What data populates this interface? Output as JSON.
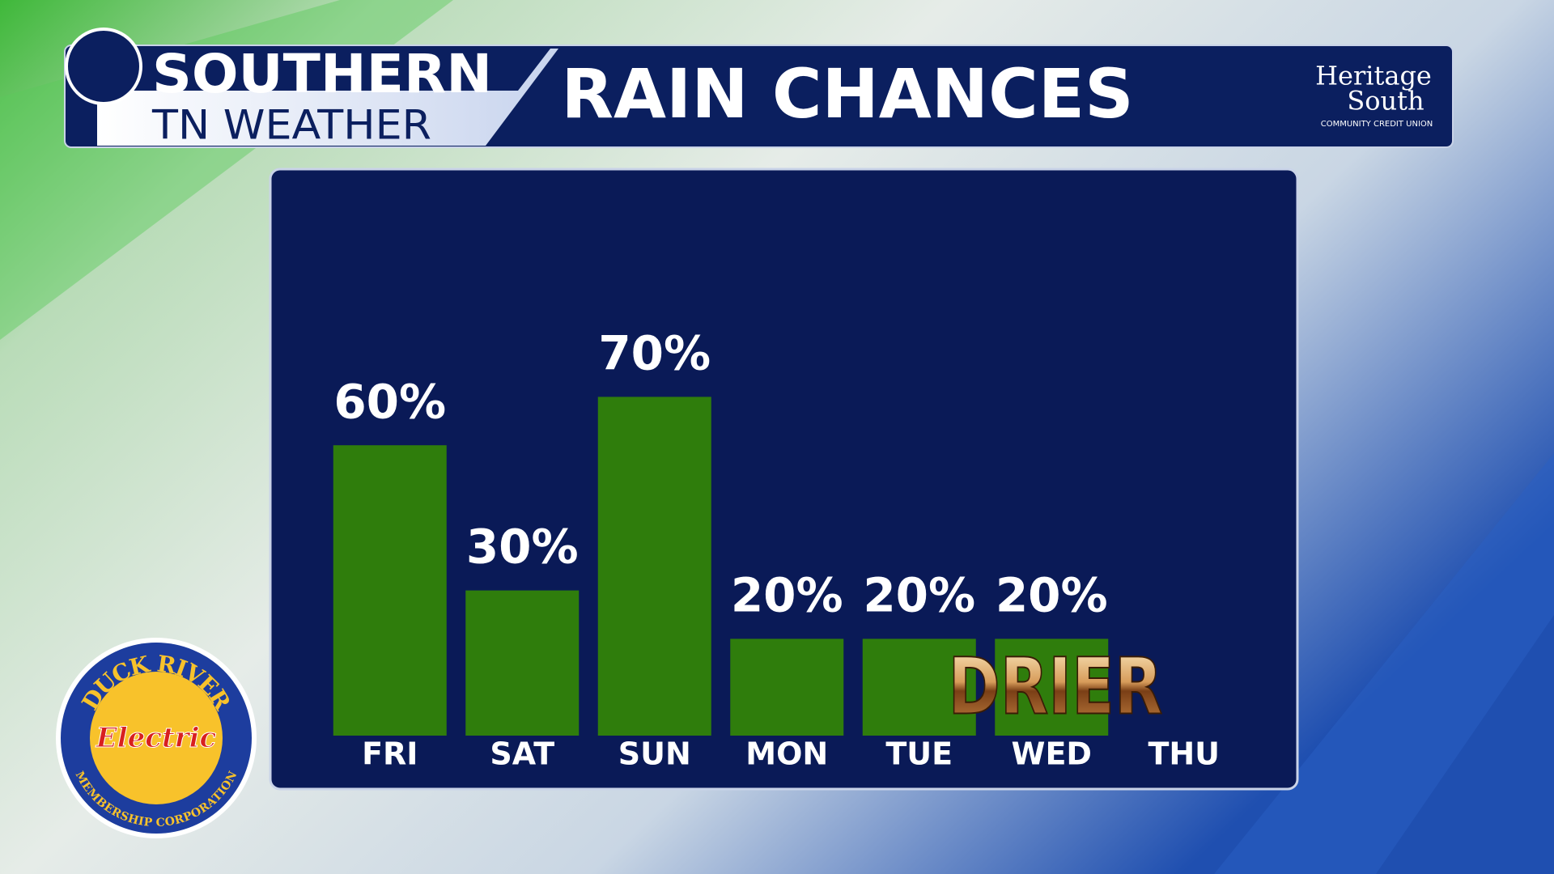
{
  "header": {
    "brand_top": "SOUTHERN",
    "brand_bottom": "TN WEATHER"
  },
  "sponsor": {
    "name_top": "Heritage",
    "name_bottom": "South",
    "tagline": "COMMUNITY CREDIT UNION"
  },
  "logo": {
    "top": "DUCK RIVER",
    "middle": "Electric",
    "bottom": "MEMBERSHIP CORPORATION"
  },
  "chart_data": {
    "type": "bar",
    "title": "RAIN CHANCES",
    "categories": [
      "FRI",
      "SAT",
      "SUN",
      "MON",
      "TUE",
      "WED",
      "THU"
    ],
    "values": [
      60,
      30,
      70,
      20,
      20,
      20,
      null
    ],
    "value_labels": [
      "60%",
      "30%",
      "70%",
      "20%",
      "20%",
      "20%",
      null
    ],
    "color": "#2f7d0c",
    "ylim": [
      0,
      100
    ],
    "annotations": [
      "DRIER"
    ]
  }
}
